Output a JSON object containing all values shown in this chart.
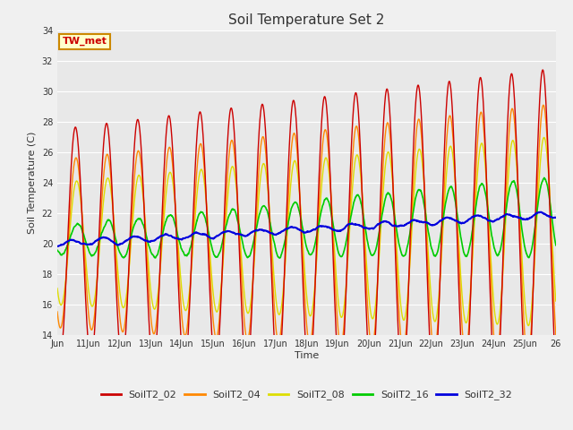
{
  "title": "Soil Temperature Set 2",
  "xlabel": "Time",
  "ylabel": "Soil Temperature (C)",
  "ylim": [
    14,
    34
  ],
  "xlim": [
    0,
    16
  ],
  "x_tick_labels": [
    "Jun",
    "11Jun",
    "12Jun",
    "13Jun",
    "14Jun",
    "15Jun",
    "16Jun",
    "17Jun",
    "18Jun",
    "19Jun",
    "20Jun",
    "21Jun",
    "22Jun",
    "23Jun",
    "24Jun",
    "25Jun",
    "26"
  ],
  "annotation_text": "TW_met",
  "annotation_color": "#cc0000",
  "annotation_bg": "#ffffcc",
  "annotation_border": "#cc8800",
  "fig_bg": "#f0f0f0",
  "plot_bg": "#e8e8e8",
  "series": [
    "SoilT2_02",
    "SoilT2_04",
    "SoilT2_08",
    "SoilT2_16",
    "SoilT2_32"
  ],
  "colors": [
    "#cc0000",
    "#ff8800",
    "#dddd00",
    "#00cc00",
    "#0000dd"
  ],
  "yticks": [
    14,
    16,
    18,
    20,
    22,
    24,
    26,
    28,
    30,
    32,
    34
  ]
}
